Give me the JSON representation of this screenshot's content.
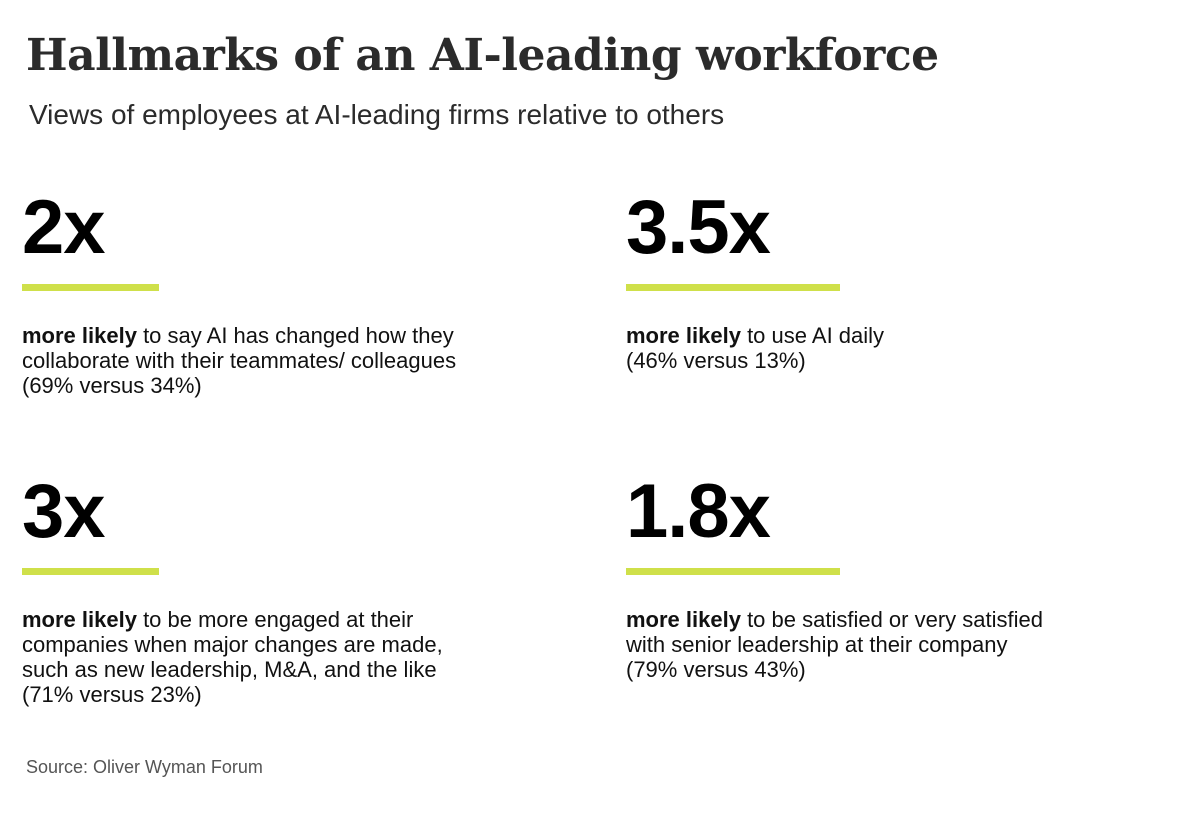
{
  "header": {
    "title": "Hallmarks of an AI-leading workforce",
    "subtitle": "Views of employees at AI-leading firms relative to others"
  },
  "colors": {
    "accent": "#cfe04a",
    "text": "#111111",
    "title": "#2b2b2b",
    "source": "#555555"
  },
  "stats": [
    {
      "value": "2x",
      "lead": "more likely",
      "line1_rest": " to say AI has changed how they",
      "line2": "collaborate with their teammates/ colleagues",
      "line3": "(69% versus 34%)",
      "line4": ""
    },
    {
      "value": "3.5x",
      "lead": "more likely",
      "line1_rest": " to use AI daily",
      "line2": "(46% versus 13%)",
      "line3": "",
      "line4": ""
    },
    {
      "value": "3x",
      "lead": "more likely",
      "line1_rest": " to be more engaged at their",
      "line2": "companies when major changes are made,",
      "line3": "such as new leadership, M&A, and the like",
      "line4": "(71% versus 23%)"
    },
    {
      "value": "1.8x",
      "lead": "more likely",
      "line1_rest": " to be satisfied or very satisfied",
      "line2": "with senior leadership at their company",
      "line3": "(79% versus 43%)",
      "line4": ""
    }
  ],
  "footer": {
    "source": "Source: Oliver Wyman Forum"
  }
}
